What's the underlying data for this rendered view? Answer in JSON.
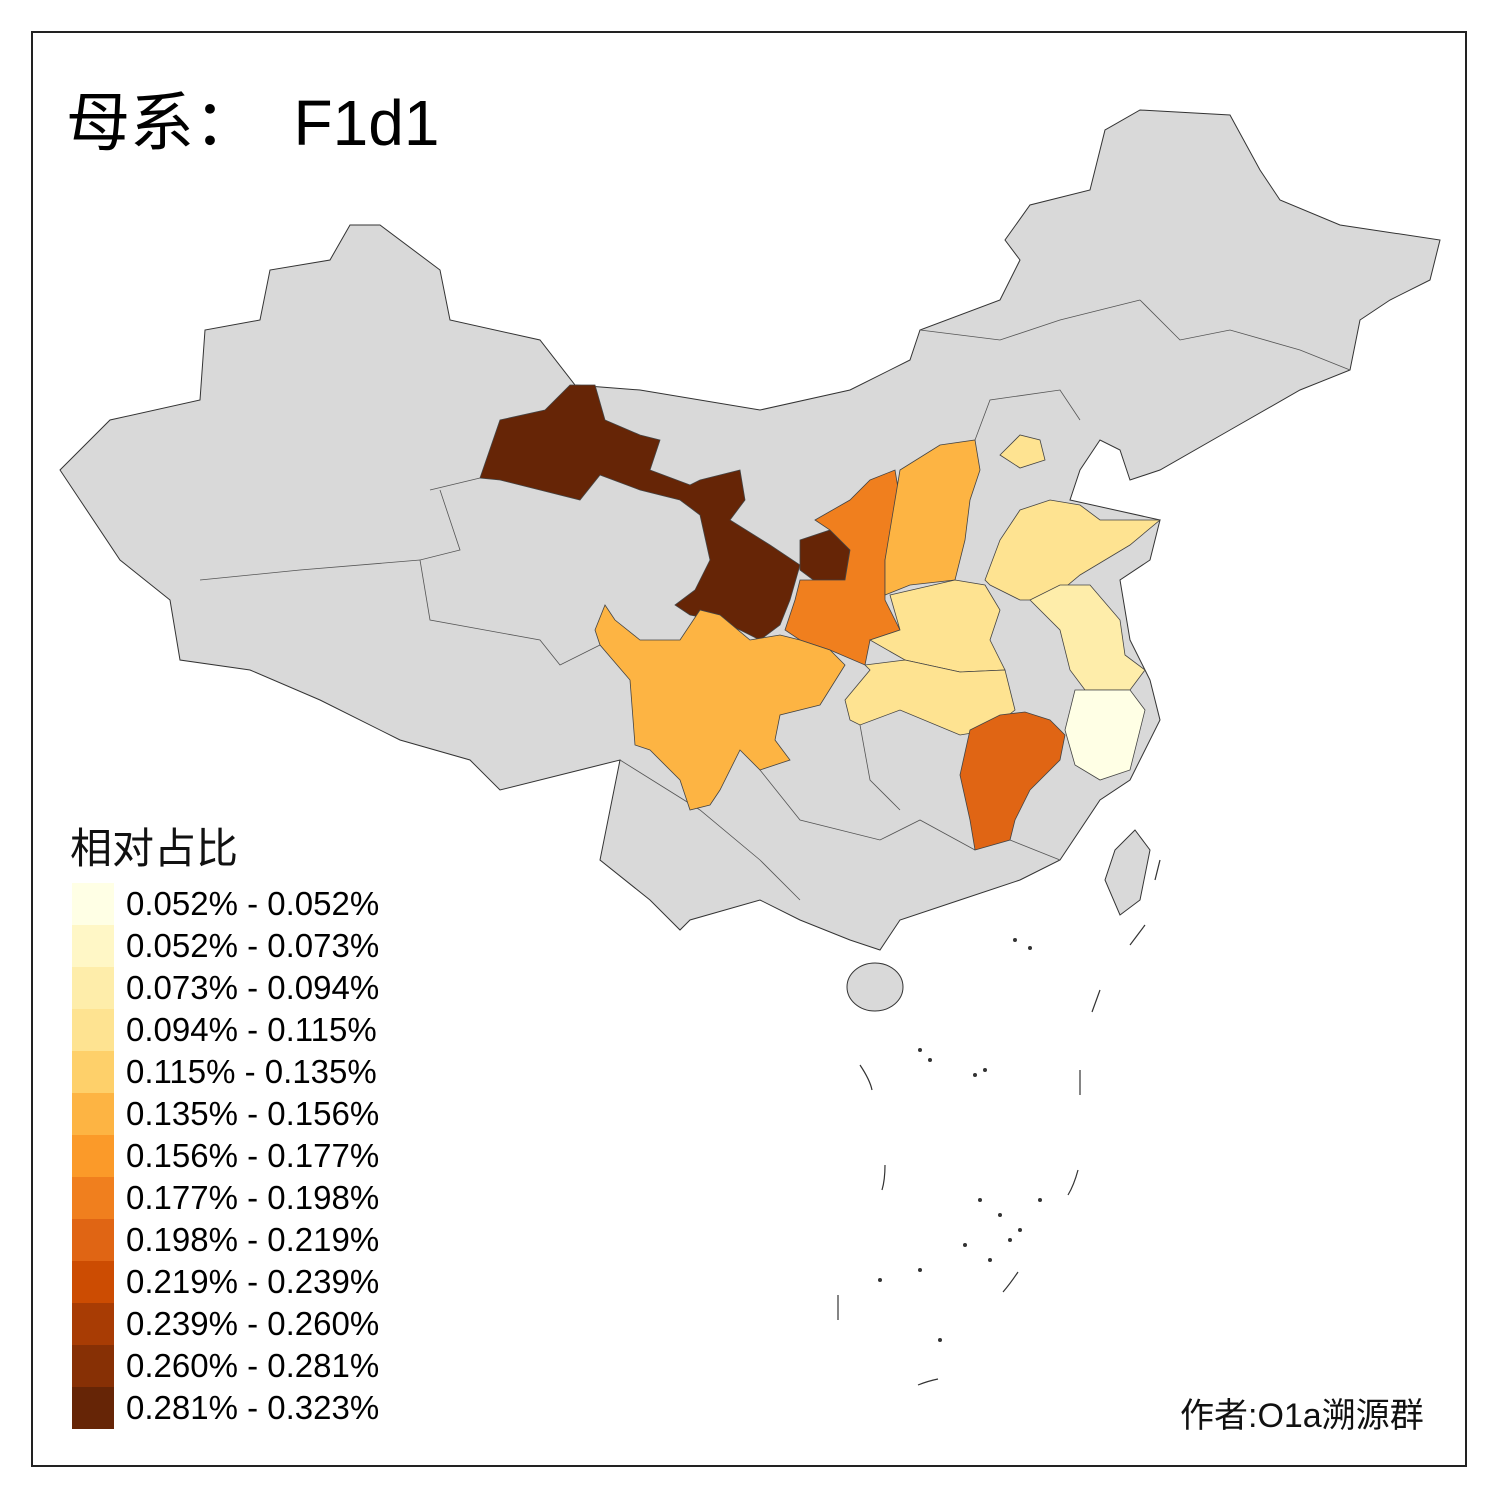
{
  "title": "母系：  F1d1",
  "legend": {
    "title": "相对占比",
    "bins": [
      {
        "label": "0.052% - 0.052%",
        "color": "#FFFFE5"
      },
      {
        "label": "0.052% - 0.073%",
        "color": "#FFF7C6"
      },
      {
        "label": "0.073% - 0.094%",
        "color": "#FEEDAA"
      },
      {
        "label": "0.094% - 0.115%",
        "color": "#FEE391"
      },
      {
        "label": "0.115% - 0.135%",
        "color": "#FED06A"
      },
      {
        "label": "0.135% - 0.156%",
        "color": "#FDB443"
      },
      {
        "label": "0.156% - 0.177%",
        "color": "#FB9A29"
      },
      {
        "label": "0.177% - 0.198%",
        "color": "#F07F1E"
      },
      {
        "label": "0.198% - 0.219%",
        "color": "#E06514"
      },
      {
        "label": "0.219% - 0.239%",
        "color": "#CC4C02"
      },
      {
        "label": "0.239% - 0.260%",
        "color": "#A83C04"
      },
      {
        "label": "0.260% - 0.281%",
        "color": "#873005"
      },
      {
        "label": "0.281% - 0.323%",
        "color": "#662506"
      }
    ]
  },
  "map": {
    "no_data_color": "#D9D9D9",
    "regions": [
      {
        "id": "gansu",
        "bin": 12
      },
      {
        "id": "ningxia",
        "bin": 12
      },
      {
        "id": "shaanxi",
        "bin": 7
      },
      {
        "id": "shanxi",
        "bin": 5
      },
      {
        "id": "beijing",
        "bin": 3
      },
      {
        "id": "shandong",
        "bin": 3
      },
      {
        "id": "henan",
        "bin": 3
      },
      {
        "id": "hubei",
        "bin": 3
      },
      {
        "id": "jiangsu",
        "bin": 2
      },
      {
        "id": "zhejiang",
        "bin": 0
      },
      {
        "id": "jiangxi",
        "bin": 8
      },
      {
        "id": "sichuan",
        "bin": 5
      }
    ]
  },
  "credit": "作者:O1a溯源群"
}
